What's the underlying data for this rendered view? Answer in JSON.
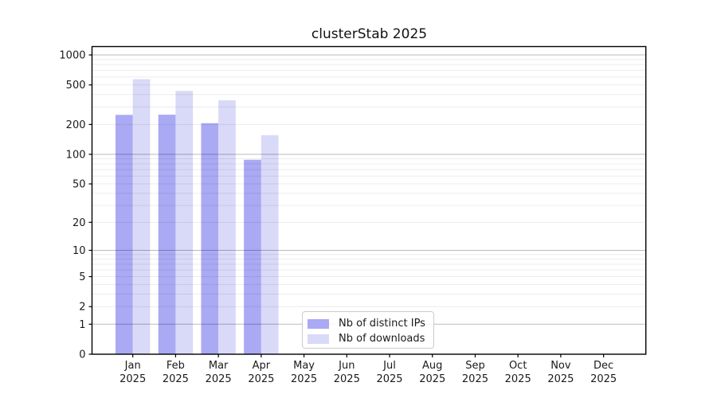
{
  "chart_data": {
    "type": "bar",
    "title": "clusterStab 2025",
    "x_tick_months": [
      "Jan",
      "Feb",
      "Mar",
      "Apr",
      "May",
      "Jun",
      "Jul",
      "Aug",
      "Sep",
      "Oct",
      "Nov",
      "Dec"
    ],
    "x_tick_year": "2025",
    "series": [
      {
        "name": "Nb of distinct IPs",
        "color": "#a9a9f4",
        "values": [
          250,
          251,
          206,
          88,
          null,
          null,
          null,
          null,
          null,
          null,
          null,
          null
        ]
      },
      {
        "name": "Nb of downloads",
        "color": "#d9d9f8",
        "values": [
          570,
          435,
          350,
          156,
          null,
          null,
          null,
          null,
          null,
          null,
          null,
          null
        ]
      }
    ],
    "yscale": "log10(1+v)",
    "y_ticks": [
      1000,
      500,
      200,
      100,
      50,
      20,
      10,
      5,
      2,
      1,
      0
    ],
    "ylim": [
      0,
      1200
    ],
    "grid": "horizontal",
    "legend_position": "lower center"
  }
}
